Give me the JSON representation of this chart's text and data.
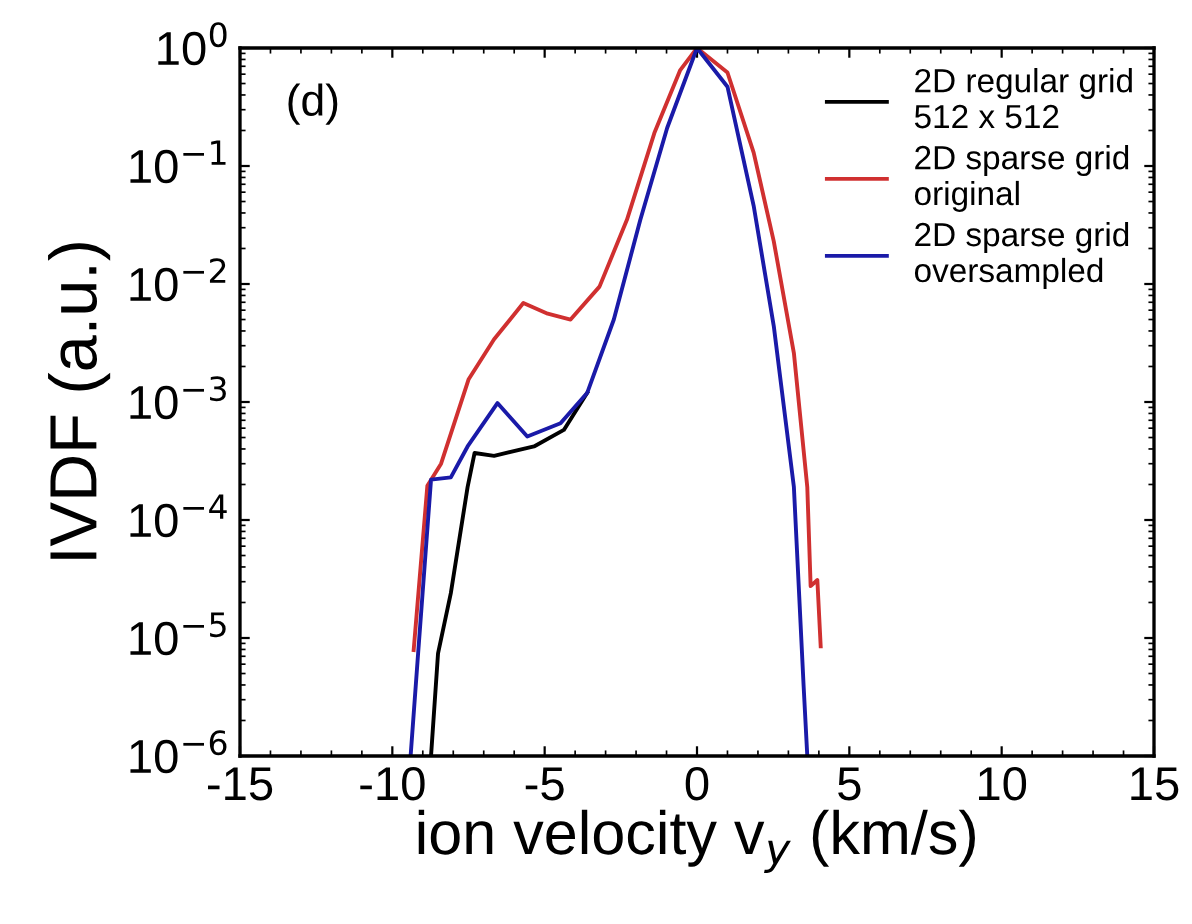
{
  "chart_data": {
    "type": "line",
    "xlabel": "ion velocity v$_{y}$ (km/s)",
    "ylabel": "IVDF (a.u.)",
    "annotations": [
      "(d)"
    ],
    "log": "y",
    "legend": "top right",
    "grid": false,
    "line_style": "solid",
    "marker": "none",
    "xlim": [
      -15,
      15
    ],
    "xticks": [
      -15,
      -10,
      -5,
      0,
      5,
      10,
      15
    ],
    "ylim": [
      1e-06,
      1
    ],
    "yticks": [
      {
        "value": 1e-06,
        "label": "10$^{−6}$"
      },
      {
        "value": 1e-05,
        "label": "10$^{−5}$"
      },
      {
        "value": 0.0001,
        "label": "10$^{−4}$"
      },
      {
        "value": 0.001,
        "label": "10$^{−3}$"
      },
      {
        "value": 0.01,
        "label": "10$^{−2}$"
      },
      {
        "value": 0.1,
        "label": "10$^{−1}$"
      },
      {
        "value": 1,
        "label": "10$^{0}$"
      }
    ],
    "series": [
      {
        "name": "2D regular grid\n512 x 512",
        "color": "#000000",
        "x": [
          -8.73,
          -8.5,
          -8.08,
          -7.53,
          -7.3,
          -6.66,
          -5.35,
          -4.37,
          -3.6
        ],
        "values": [
          1e-06,
          7.4e-06,
          2.4e-05,
          0.00019,
          0.00037,
          0.00035,
          0.00042,
          0.00058,
          0.0012
        ]
      },
      {
        "name": "2D sparse grid\noriginal",
        "color": "#d03030",
        "x": [
          -9.3,
          -8.85,
          -8.4,
          -7.5,
          -6.66,
          -5.7,
          -4.9,
          -4.15,
          -3.2,
          -2.3,
          -1.4,
          -0.55,
          0,
          1.0,
          1.86,
          2.52,
          3.18,
          3.62,
          3.73,
          3.95,
          4.06
        ],
        "values": [
          7.9e-06,
          0.000195,
          0.0003,
          0.00155,
          0.0034,
          0.0069,
          0.0056,
          0.005,
          0.0095,
          0.035,
          0.19,
          0.65,
          1,
          0.62,
          0.13,
          0.023,
          0.0026,
          0.00019,
          2.75e-05,
          3.1e-05,
          8.5e-06
        ]
      },
      {
        "name": "2D sparse grid\noversampled",
        "color": "#1a1aa8",
        "x": [
          -9.4,
          -9.17,
          -8.73,
          -8.08,
          -7.53,
          -6.55,
          -5.57,
          -4.48,
          -3.6,
          -2.73,
          -1.86,
          -0.98,
          0,
          1.0,
          1.86,
          2.52,
          3.18,
          3.5,
          3.62
        ],
        "values": [
          1e-06,
          6.5e-06,
          0.00022,
          0.00023,
          0.00042,
          0.00098,
          0.00051,
          0.00066,
          0.0012,
          0.005,
          0.035,
          0.21,
          1,
          0.47,
          0.046,
          0.0044,
          0.00019,
          3.9e-06,
          1e-06
        ]
      }
    ]
  }
}
